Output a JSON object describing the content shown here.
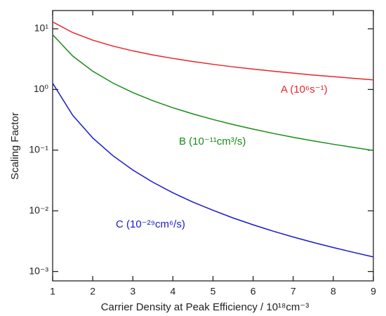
{
  "chart_data": {
    "type": "line",
    "xlabel": "Carrier Density at Peak Efficiency / 10¹⁸cm⁻³",
    "ylabel": "Scaling Factor",
    "x": [
      1,
      1.5,
      2,
      2.5,
      3,
      3.5,
      4,
      4.5,
      5,
      5.5,
      6,
      6.5,
      7,
      7.5,
      8,
      8.5,
      9
    ],
    "series": [
      {
        "name": "A (10⁶s⁻¹)",
        "color": "#e8242a",
        "values": [
          13,
          8.67,
          6.5,
          5.2,
          4.33,
          3.71,
          3.25,
          2.89,
          2.6,
          2.36,
          2.17,
          2.0,
          1.86,
          1.73,
          1.63,
          1.53,
          1.44
        ]
      },
      {
        "name": "B (10⁻¹¹cm³/s)",
        "color": "#1a8c1a",
        "values": [
          8,
          3.56,
          2.0,
          1.28,
          0.889,
          0.653,
          0.5,
          0.395,
          0.32,
          0.264,
          0.222,
          0.189,
          0.163,
          0.142,
          0.125,
          0.111,
          0.0988
        ]
      },
      {
        "name": "C (10⁻²⁹cm⁶/s)",
        "color": "#1a1acc",
        "values": [
          1.27,
          0.376,
          0.159,
          0.0813,
          0.047,
          0.0296,
          0.0198,
          0.0139,
          0.0102,
          0.00763,
          0.00588,
          0.00462,
          0.0037,
          0.00301,
          0.00248,
          0.00207,
          0.00174
        ]
      }
    ],
    "xlim": [
      1,
      9
    ],
    "xticks": [
      1,
      2,
      3,
      4,
      5,
      6,
      7,
      8,
      9
    ],
    "ylim": [
      0.0007,
      20
    ],
    "log_y": true,
    "yticks": [
      {
        "value": 0.001,
        "label": "10⁻³"
      },
      {
        "value": 0.01,
        "label": "10⁻²"
      },
      {
        "value": 0.1,
        "label": "10⁻¹"
      },
      {
        "value": 1,
        "label": "10⁰"
      },
      {
        "value": 10,
        "label": "10¹"
      }
    ],
    "grid": false
  }
}
